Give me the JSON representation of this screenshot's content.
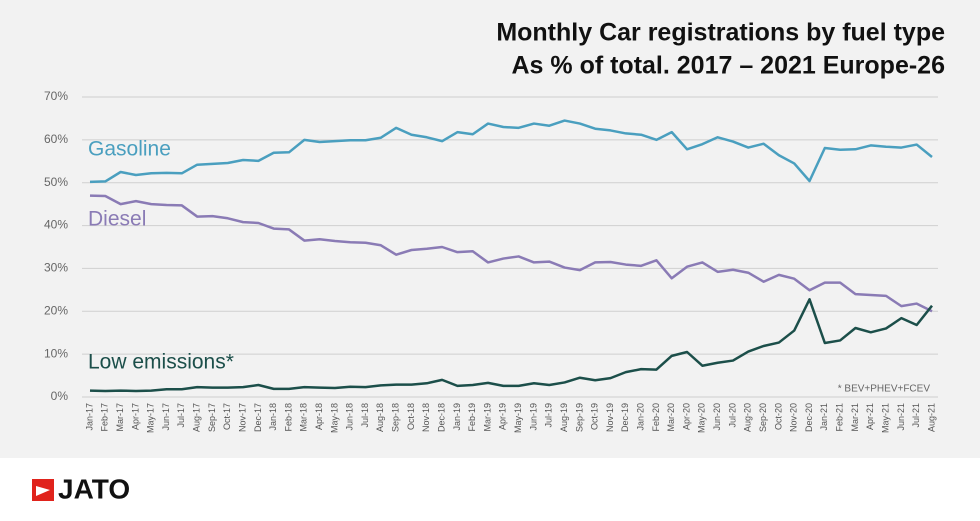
{
  "chart_data": {
    "type": "line",
    "title": "Monthly Car registrations by fuel type",
    "subtitle": "As % of total. 2017 – 2021 Europe-26",
    "annotation": "* BEV+PHEV+FCEV",
    "categories": [
      "Jan-17",
      "Feb-17",
      "Mar-17",
      "Apr-17",
      "May-17",
      "Jun-17",
      "Jul-17",
      "Aug-17",
      "Sep-17",
      "Oct-17",
      "Nov-17",
      "Dec-17",
      "Jan-18",
      "Feb-18",
      "Mar-18",
      "Apr-18",
      "May-18",
      "Jun-18",
      "Jul-18",
      "Aug-18",
      "Sep-18",
      "Oct-18",
      "Nov-18",
      "Dec-18",
      "Jan-19",
      "Feb-19",
      "Mar-19",
      "Apr-19",
      "May-19",
      "Jun-19",
      "Jul-19",
      "Aug-19",
      "Sep-19",
      "Oct-19",
      "Nov-19",
      "Dec-19",
      "Jan-20",
      "Feb-20",
      "Mar-20",
      "Apr-20",
      "May-20",
      "Jun-20",
      "Jul-20",
      "Aug-20",
      "Sep-20",
      "Oct-20",
      "Nov-20",
      "Dec-20",
      "Jan-21",
      "Feb-21",
      "Mar-21",
      "Apr-21",
      "May-21",
      "Jun-21",
      "Jul-21",
      "Aug-21"
    ],
    "series": [
      {
        "name": "Gasoline",
        "color": "#4a9fbf",
        "values": [
          50.2,
          50.3,
          52.5,
          51.8,
          52.2,
          52.3,
          52.2,
          54.2,
          54.4,
          54.6,
          55.3,
          55.1,
          57.0,
          57.1,
          60.0,
          59.5,
          59.7,
          59.9,
          59.9,
          60.5,
          62.8,
          61.2,
          60.6,
          59.7,
          61.8,
          61.3,
          63.8,
          63.0,
          62.8,
          63.8,
          63.3,
          64.5,
          63.8,
          62.6,
          62.2,
          61.5,
          61.2,
          60.0,
          61.8,
          57.8,
          59.0,
          60.6,
          59.6,
          58.2,
          59.1,
          56.4,
          54.5,
          50.4,
          58.1,
          57.7,
          57.8,
          58.7,
          58.4,
          58.2,
          58.9,
          56.0
        ]
      },
      {
        "name": "Diesel",
        "color": "#8a7bb5",
        "values": [
          47.0,
          46.9,
          45.0,
          45.7,
          45.0,
          44.8,
          44.7,
          42.1,
          42.2,
          41.7,
          40.8,
          40.6,
          39.3,
          39.1,
          36.5,
          36.8,
          36.4,
          36.1,
          36.0,
          35.4,
          33.2,
          34.3,
          34.6,
          35.0,
          33.8,
          34.0,
          31.4,
          32.3,
          32.8,
          31.4,
          31.6,
          30.2,
          29.6,
          31.4,
          31.5,
          30.9,
          30.6,
          31.9,
          27.7,
          30.4,
          31.4,
          29.2,
          29.7,
          29.0,
          26.9,
          28.5,
          27.6,
          24.9,
          26.7,
          26.7,
          24.0,
          23.8,
          23.6,
          21.2,
          21.8,
          20.0
        ]
      },
      {
        "name": "Low emissions*",
        "color": "#1c4f4a",
        "values": [
          1.5,
          1.4,
          1.5,
          1.4,
          1.5,
          1.8,
          1.8,
          2.3,
          2.2,
          2.2,
          2.3,
          2.8,
          1.9,
          1.9,
          2.3,
          2.2,
          2.1,
          2.4,
          2.3,
          2.7,
          2.9,
          2.9,
          3.2,
          4.0,
          2.6,
          2.8,
          3.3,
          2.6,
          2.6,
          3.2,
          2.8,
          3.4,
          4.5,
          3.9,
          4.4,
          5.8,
          6.5,
          6.4,
          9.6,
          10.5,
          7.3,
          8.0,
          8.5,
          10.6,
          11.9,
          12.7,
          15.5,
          22.8,
          12.6,
          13.2,
          16.1,
          15.1,
          16.0,
          18.4,
          16.8,
          21.3
        ]
      }
    ],
    "ylim": [
      0,
      70
    ],
    "yticks": [
      {
        "value": 0,
        "label": "0%"
      },
      {
        "value": 10,
        "label": "10%"
      },
      {
        "value": 20,
        "label": "20%"
      },
      {
        "value": 30,
        "label": "30%"
      },
      {
        "value": 40,
        "label": "40%"
      },
      {
        "value": 50,
        "label": "50%"
      },
      {
        "value": 60,
        "label": "60%"
      },
      {
        "value": 70,
        "label": "70%"
      }
    ],
    "grid": true
  },
  "footer": {
    "logo": "JATO"
  }
}
